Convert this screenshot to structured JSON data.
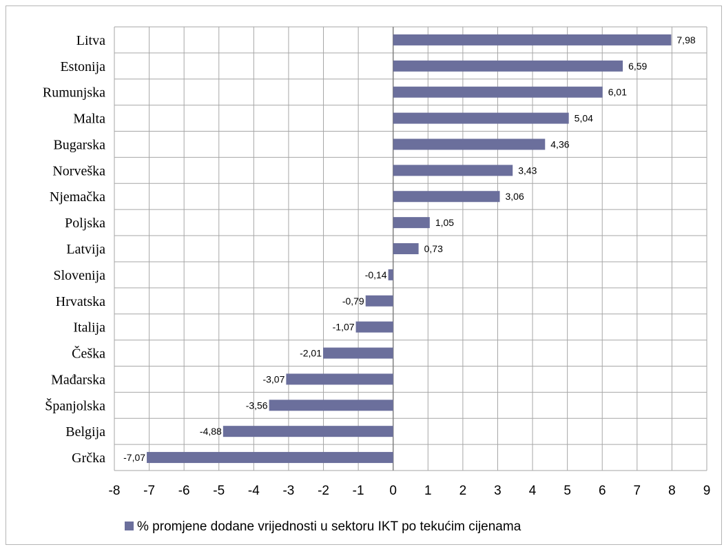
{
  "chart_data": {
    "type": "bar",
    "orientation": "horizontal",
    "categories": [
      "Litva",
      "Estonija",
      "Rumunjska",
      "Malta",
      "Bugarska",
      "Norveška",
      "Njemačka",
      "Poljska",
      "Latvija",
      "Slovenija",
      "Hrvatska",
      "Italija",
      "Češka",
      "Mađarska",
      "Španjolska",
      "Belgija",
      "Grčka"
    ],
    "series": [
      {
        "name": "% promjene dodane vrijednosti u sektoru IKT po tekućim cijenama",
        "values": [
          7.98,
          6.59,
          6.01,
          5.04,
          4.36,
          3.43,
          3.06,
          1.05,
          0.73,
          -0.14,
          -0.79,
          -1.07,
          -2.01,
          -3.07,
          -3.56,
          -4.88,
          -7.07
        ],
        "labels": [
          "7,98",
          "6,59",
          "6,01",
          "5,04",
          "4,36",
          "3,43",
          "3,06",
          "1,05",
          "0,73",
          "-0,14",
          "-0,79",
          "-1,07",
          "-2,01",
          "-3,07",
          "-3,56",
          "-4,88",
          "-7,07"
        ]
      }
    ],
    "xlim": [
      -8,
      9
    ],
    "xticks": [
      "-8",
      "-7",
      "-6",
      "-5",
      "-4",
      "-3",
      "-2",
      "-1",
      "0",
      "1",
      "2",
      "3",
      "4",
      "5",
      "6",
      "7",
      "8",
      "9"
    ],
    "grid": true,
    "legend_position": "bottom",
    "colors": {
      "bar": "#6b6f9c",
      "grid": "#a6a6a6",
      "axis": "#808080"
    }
  }
}
